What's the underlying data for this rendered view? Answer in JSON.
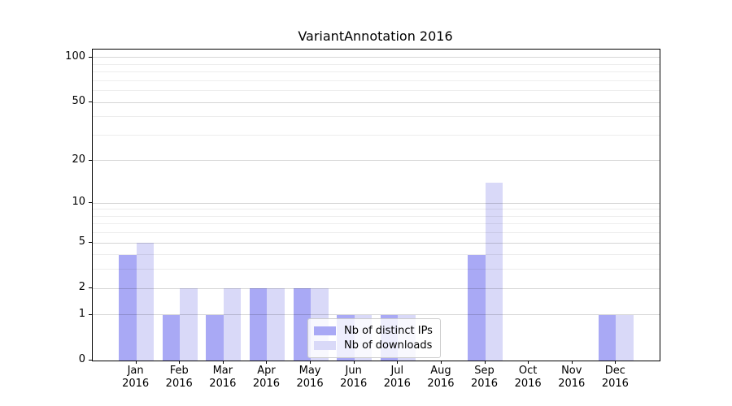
{
  "figure": {
    "title": "VariantAnnotation 2016"
  },
  "chart_data": {
    "type": "bar",
    "title": "VariantAnnotation 2016",
    "categories": [
      "Jan 2016",
      "Feb 2016",
      "Mar 2016",
      "Apr 2016",
      "May 2016",
      "Jun 2016",
      "Jul 2016",
      "Aug 2016",
      "Sep 2016",
      "Oct 2016",
      "Nov 2016",
      "Dec 2016"
    ],
    "series": [
      {
        "name": "Nb of distinct IPs",
        "color": "#a9a9f5",
        "values": [
          4,
          1,
          1,
          2,
          2,
          1,
          1,
          0,
          4,
          0,
          0,
          1
        ]
      },
      {
        "name": "Nb of downloads",
        "color": "#d9d9f8",
        "values": [
          5,
          2,
          2,
          2,
          2,
          1,
          1,
          0,
          14,
          0,
          0,
          1
        ]
      }
    ],
    "xlabel": "",
    "ylabel": "",
    "y_scale": "log1p",
    "ylim": [
      0,
      113
    ],
    "y_ticks": [
      0,
      1,
      2,
      5,
      10,
      20,
      50,
      100
    ],
    "y_minor_ticks": [
      3,
      4,
      6,
      7,
      8,
      9,
      30,
      40,
      60,
      70,
      80,
      90
    ],
    "grid": "major+minor",
    "legend_position": "lower center",
    "colors": {
      "major_grid": "rgba(0,0,0,0.16)",
      "minor_grid": "rgba(0,0,0,0.07)",
      "spine": "#000000",
      "text": "#000000"
    }
  }
}
